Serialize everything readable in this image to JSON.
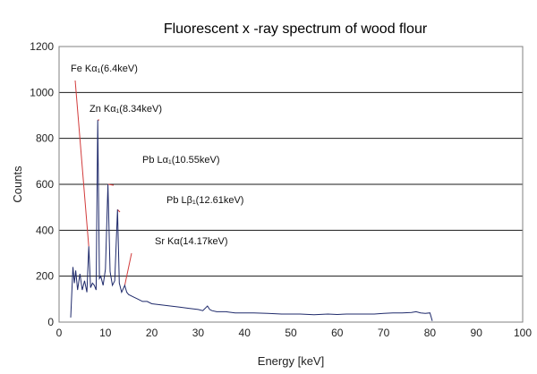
{
  "chart_data": {
    "type": "line",
    "title": "Fluorescent x -ray spectrum of wood flour",
    "xlabel": "Energy [keV]",
    "ylabel": "Counts",
    "xlim": [
      0,
      100
    ],
    "ylim": [
      0,
      1200
    ],
    "xticks": [
      0,
      10,
      20,
      30,
      40,
      50,
      60,
      70,
      80,
      90,
      100
    ],
    "yticks": [
      0,
      200,
      400,
      600,
      800,
      1000,
      1200
    ],
    "grid": "horizontal",
    "line_color": "#1f2a6b",
    "series": [
      {
        "x": [
          2.5,
          3.0,
          3.3,
          3.6,
          4.0,
          4.5,
          5.0,
          5.5,
          6.0,
          6.4,
          6.8,
          7.2,
          7.6,
          8.0,
          8.34,
          8.7,
          9.0,
          9.5,
          10.0,
          10.55,
          11.0,
          11.5,
          12.0,
          12.61,
          13.0,
          13.5,
          14.17,
          14.6,
          15.0,
          16.0,
          17.0,
          18.0,
          19.0,
          20.0,
          22.0,
          24.0,
          26.0,
          28.0,
          30.0,
          31.0,
          32.0,
          32.5,
          33.0,
          34.0,
          36.0,
          38.0,
          40.0,
          42.0,
          45.0,
          48.0,
          50.0,
          52.0,
          55.0,
          58.0,
          60.0,
          62.0,
          65.0,
          68.0,
          70.0,
          72.0,
          74.0,
          76.0,
          77.0,
          78.0,
          79.0,
          80.0,
          80.5
        ],
        "y": [
          20,
          240,
          170,
          225,
          140,
          210,
          140,
          180,
          130,
          330,
          150,
          170,
          160,
          140,
          880,
          190,
          200,
          160,
          230,
          600,
          220,
          160,
          180,
          490,
          170,
          130,
          160,
          130,
          120,
          110,
          100,
          90,
          90,
          80,
          75,
          70,
          65,
          60,
          55,
          50,
          70,
          55,
          50,
          45,
          45,
          40,
          40,
          40,
          38,
          35,
          35,
          35,
          32,
          35,
          33,
          35,
          35,
          35,
          38,
          40,
          40,
          42,
          45,
          40,
          38,
          40,
          5
        ]
      }
    ],
    "annotations": [
      {
        "text": "Fe Kα₁(6.4keV)",
        "x": 6.4,
        "y": 330
      },
      {
        "text": "Zn Kα₁(8.34keV)",
        "x": 8.34,
        "y": 880
      },
      {
        "text": "Pb Lα₁(10.55keV)",
        "x": 10.55,
        "y": 600
      },
      {
        "text": "Pb Lβ₁(12.61keV)",
        "x": 12.61,
        "y": 490
      },
      {
        "text": "Sr Kα(14.17keV)",
        "x": 14.17,
        "y": 160
      }
    ]
  }
}
